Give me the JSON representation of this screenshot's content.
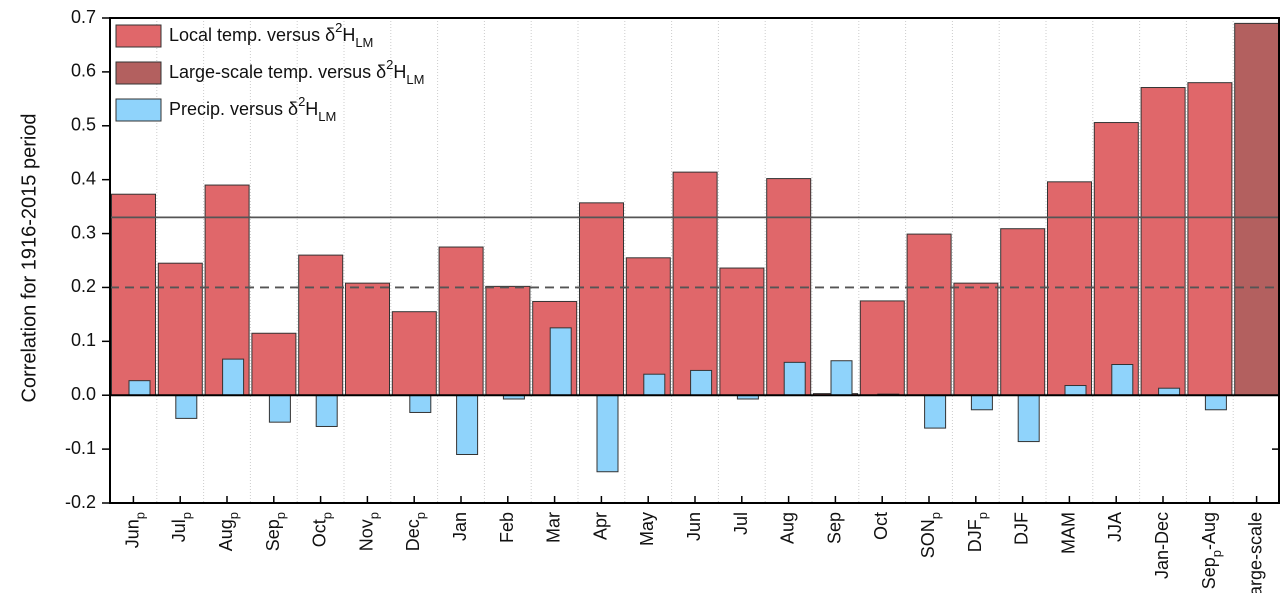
{
  "chart_data": {
    "type": "bar",
    "y_label": "Correlation for 1916-2015 period",
    "categories": [
      [
        "Jun",
        {
          "sub": "p"
        }
      ],
      [
        "Jul",
        {
          "sub": "p"
        }
      ],
      [
        "Aug",
        {
          "sub": "p"
        }
      ],
      [
        "Sep",
        {
          "sub": "p"
        }
      ],
      [
        "Oct",
        {
          "sub": "p"
        }
      ],
      [
        "Nov",
        {
          "sub": "p"
        }
      ],
      [
        "Dec",
        {
          "sub": "p"
        }
      ],
      [
        "Jan"
      ],
      [
        "Feb"
      ],
      [
        "Mar"
      ],
      [
        "Apr"
      ],
      [
        "May"
      ],
      [
        "Jun"
      ],
      [
        "Jul"
      ],
      [
        "Aug"
      ],
      [
        "Sep"
      ],
      [
        "Oct"
      ],
      [
        "SON",
        {
          "sub": "p"
        }
      ],
      [
        "DJF",
        {
          "sub": "p"
        }
      ],
      [
        "DJF"
      ],
      [
        "MAM"
      ],
      [
        "JJA"
      ],
      [
        "Jan-Dec"
      ],
      [
        "Sep",
        {
          "sub": "p"
        },
        "-Aug"
      ],
      [
        "large-scale"
      ]
    ],
    "series": [
      {
        "name": [
          "Local temp. versus δ",
          {
            "sup": "2"
          },
          "H",
          {
            "sub": "LM"
          }
        ],
        "color": "#e0676a",
        "slot": "wide",
        "values": [
          0.373,
          0.245,
          0.39,
          0.115,
          0.26,
          0.208,
          0.155,
          0.275,
          0.202,
          0.174,
          0.357,
          0.255,
          0.414,
          0.236,
          0.402,
          0.003,
          0.175,
          0.299,
          0.208,
          0.309,
          0.396,
          0.506,
          0.571,
          0.58,
          null
        ]
      },
      {
        "name": [
          "Large-scale temp. versus δ",
          {
            "sup": "2"
          },
          "H",
          {
            "sub": "LM"
          }
        ],
        "color": "#b3605f",
        "slot": "wide",
        "values": [
          null,
          null,
          null,
          null,
          null,
          null,
          null,
          null,
          null,
          null,
          null,
          null,
          null,
          null,
          null,
          null,
          null,
          null,
          null,
          null,
          null,
          null,
          null,
          null,
          0.69
        ]
      },
      {
        "name": [
          "Precip. versus δ",
          {
            "sup": "2"
          },
          "H",
          {
            "sub": "LM"
          }
        ],
        "color": "#8fd3fb",
        "slot": "narrow",
        "values": [
          0.027,
          -0.043,
          0.067,
          -0.05,
          -0.058,
          null,
          -0.032,
          -0.11,
          -0.007,
          0.125,
          -0.142,
          0.039,
          0.046,
          -0.007,
          0.061,
          0.064,
          0.002,
          -0.061,
          -0.027,
          -0.086,
          0.018,
          0.057,
          0.013,
          -0.027,
          null
        ]
      }
    ],
    "ylim": [
      -0.2,
      0.7
    ],
    "yticks": [
      -0.2,
      -0.1,
      {
        "value": 0,
        "label": "0.0"
      },
      0.1,
      0.2,
      0.3,
      0.4,
      0.5,
      0.6,
      0.7
    ],
    "reference_lines": [
      {
        "value": 0.33,
        "style": "solid"
      },
      {
        "value": 0.2,
        "style": "dashed"
      }
    ],
    "legend": "upper left"
  }
}
